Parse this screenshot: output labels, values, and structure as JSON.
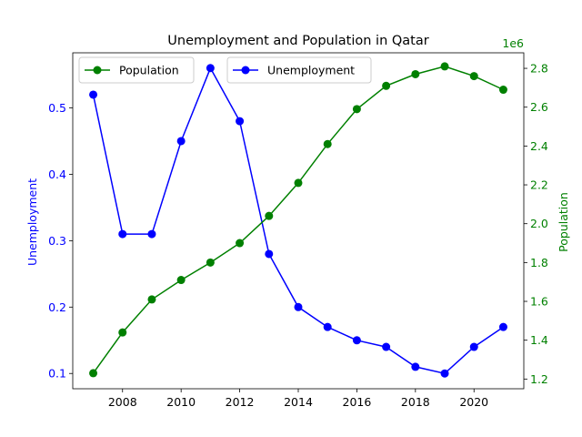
{
  "chart_data": {
    "type": "line",
    "title": "Unemployment and Population in Qatar",
    "x": [
      2007,
      2008,
      2009,
      2010,
      2011,
      2012,
      2013,
      2014,
      2015,
      2016,
      2017,
      2018,
      2019,
      2020,
      2021
    ],
    "xlim": [
      2006.3,
      2021.7
    ],
    "x_ticks": [
      "2008",
      "2010",
      "2012",
      "2014",
      "2016",
      "2018",
      "2020"
    ],
    "y_left": {
      "label": "Unemployment",
      "color": "#0000ff",
      "ylim": [
        0.077,
        0.583
      ],
      "ticks": [
        "0.1",
        "0.2",
        "0.3",
        "0.4",
        "0.5"
      ]
    },
    "y_right": {
      "label": "Population",
      "color": "#008000",
      "offset_label": "1e6",
      "ylim": [
        1.15,
        2.88
      ],
      "ticks": [
        "1.2",
        "1.4",
        "1.6",
        "1.8",
        "2.0",
        "2.2",
        "2.4",
        "2.6",
        "2.8"
      ]
    },
    "series": [
      {
        "name": "Unemployment",
        "axis": "left",
        "color": "#0000ff",
        "values": [
          0.52,
          0.31,
          0.31,
          0.45,
          0.56,
          0.48,
          0.28,
          0.2,
          0.17,
          0.15,
          0.14,
          0.11,
          0.1,
          0.14,
          0.17
        ]
      },
      {
        "name": "Population",
        "axis": "right",
        "color": "#008000",
        "values": [
          1.23,
          1.44,
          1.61,
          1.71,
          1.8,
          1.9,
          2.04,
          2.21,
          2.41,
          2.59,
          2.71,
          2.77,
          2.81,
          2.76,
          2.69
        ]
      }
    ],
    "legends": {
      "left": [
        "Population"
      ],
      "right": [
        "Unemployment"
      ]
    },
    "legend_placement": "top-left, two separate boxes",
    "grid": false
  }
}
